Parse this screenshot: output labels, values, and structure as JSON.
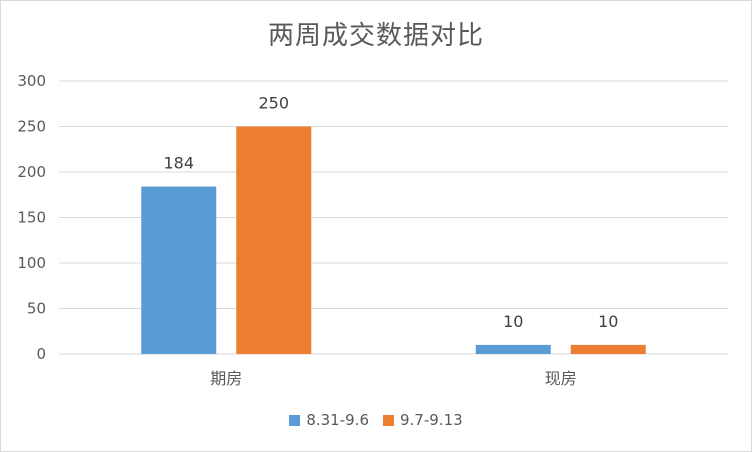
{
  "chart_data": {
    "type": "bar",
    "title": "两周成交数据对比",
    "categories": [
      "期房",
      "现房"
    ],
    "series": [
      {
        "name": "8.31-9.6",
        "values": [
          184,
          10
        ],
        "color": "#5b9bd5"
      },
      {
        "name": "9.7-9.13",
        "values": [
          250,
          10
        ],
        "color": "#ed7d31"
      }
    ],
    "ylim": [
      0,
      300
    ],
    "yticks": [
      "0",
      "50",
      "100",
      "150",
      "200",
      "250",
      "300"
    ],
    "grid": true,
    "legend_position": "bottom",
    "data_labels": true
  }
}
